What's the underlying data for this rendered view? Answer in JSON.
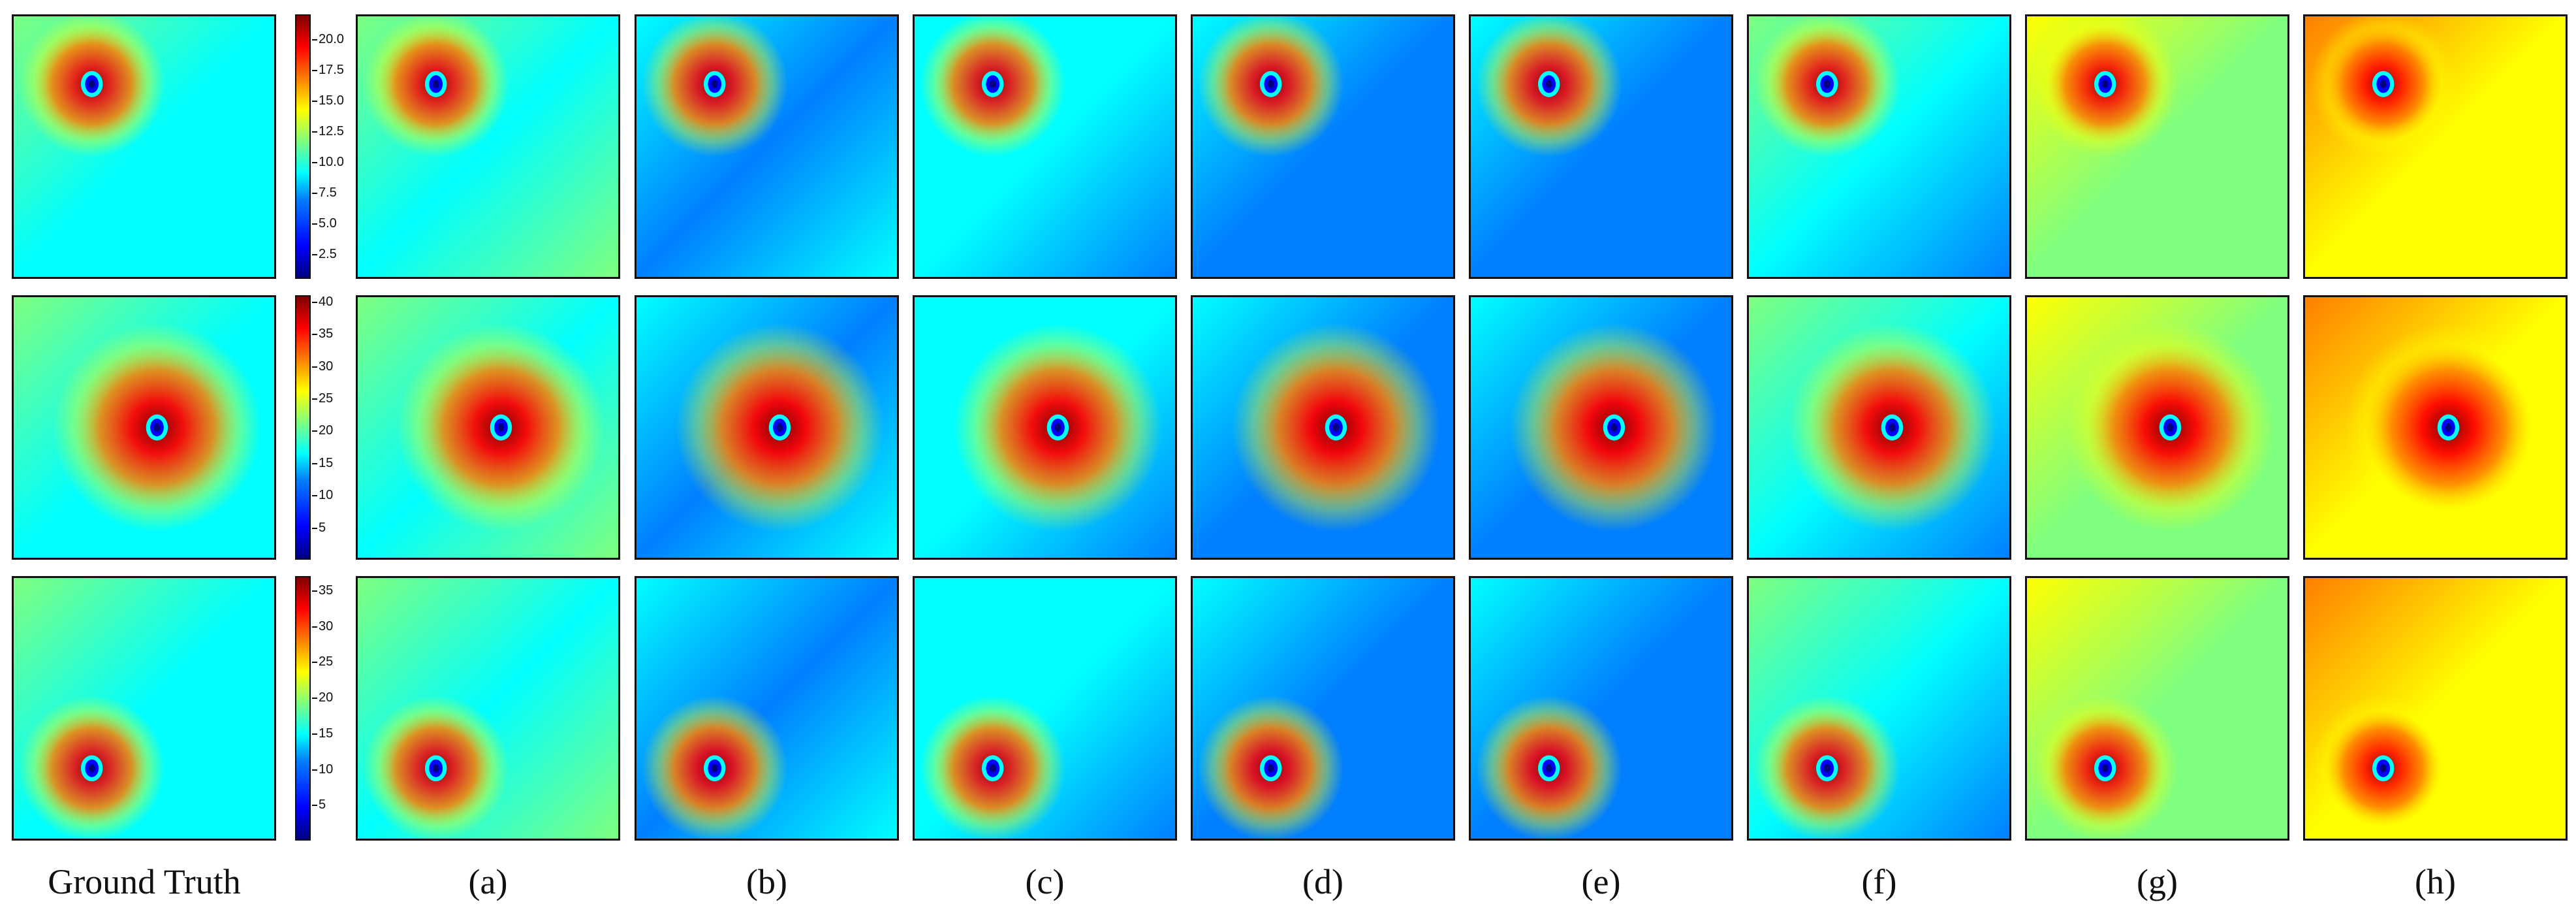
{
  "column_labels": [
    "Ground Truth",
    "(a)",
    "(b)",
    "(c)",
    "(d)",
    "(e)",
    "(f)",
    "(g)",
    "(h)"
  ],
  "rows": [
    {
      "colorbar_ticks": [
        "20.0",
        "17.5",
        "15.0",
        "12.5",
        "10.0",
        "7.5",
        "5.0",
        "2.5"
      ],
      "colorbar_range": [
        0.5,
        22
      ],
      "eye": {
        "u": 0.3,
        "v": 0.26
      }
    },
    {
      "colorbar_ticks": [
        "40",
        "35",
        "30",
        "25",
        "20",
        "15",
        "10",
        "5"
      ],
      "colorbar_range": [
        0,
        41
      ],
      "eye": {
        "u": 0.55,
        "v": 0.5
      }
    },
    {
      "colorbar_ticks": [
        "35",
        "30",
        "25",
        "20",
        "15",
        "10",
        "5"
      ],
      "colorbar_range": [
        0,
        37
      ],
      "eye": {
        "u": 0.3,
        "v": 0.73
      }
    }
  ],
  "colormap": "jet",
  "colormap_stops": [
    "#00007f",
    "#0000ff",
    "#007fff",
    "#00ffff",
    "#7fff7f",
    "#ffff00",
    "#ff7f00",
    "#ff0000",
    "#7f0000"
  ]
}
